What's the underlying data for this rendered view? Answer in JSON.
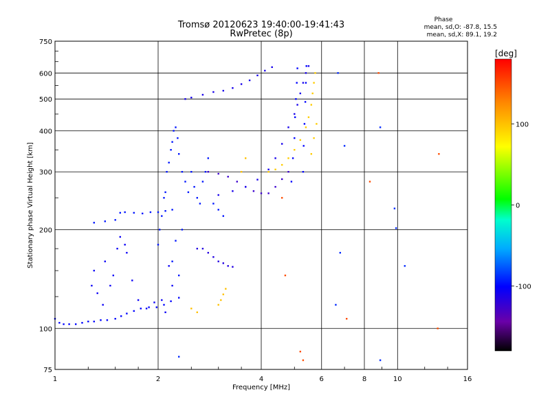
{
  "chart_data": {
    "type": "scatter",
    "title": "Tromsø 20120623 19:40:00-19:41:43",
    "subtitle": "RwPretec (8p)",
    "xlabel": "Frequency [MHz]",
    "ylabel": "Stationary phase Virtual Height [km]",
    "x_scale": "log",
    "y_scale": "log",
    "xlim": [
      1,
      16
    ],
    "ylim": [
      75,
      750
    ],
    "x_ticks": [
      1,
      2,
      4,
      6,
      8,
      10,
      16
    ],
    "y_ticks": [
      75,
      100,
      200,
      300,
      400,
      500,
      600,
      750
    ],
    "grid": true,
    "phase_info": {
      "heading": "Phase",
      "line_o": "mean, sd,O: -87.8, 15.5",
      "line_x": "mean, sd,X:  89.1, 19.2"
    },
    "colorbar": {
      "label": "[deg]",
      "range": [
        -180,
        180
      ],
      "ticks": [
        100,
        0,
        -100
      ],
      "colors": [
        "#000000",
        "#6a00a8",
        "#0000ff",
        "#00aaff",
        "#00ffcc",
        "#00ff00",
        "#ffff00",
        "#ff8800",
        "#ff0000"
      ]
    },
    "series": [
      {
        "phase": -100,
        "points": [
          [
            1.0,
            107
          ],
          [
            1.03,
            104
          ],
          [
            1.06,
            103
          ],
          [
            1.1,
            103
          ],
          [
            1.15,
            103
          ],
          [
            1.2,
            104
          ],
          [
            1.25,
            105
          ],
          [
            1.3,
            105
          ],
          [
            1.36,
            106
          ],
          [
            1.42,
            106
          ],
          [
            1.5,
            107
          ],
          [
            1.56,
            109
          ],
          [
            1.62,
            111
          ],
          [
            1.7,
            113
          ],
          [
            1.78,
            115
          ],
          [
            1.88,
            116
          ],
          [
            1.98,
            116
          ],
          [
            2.08,
            118
          ],
          [
            2.18,
            121
          ],
          [
            2.3,
            124
          ]
        ]
      },
      {
        "phase": -95,
        "points": [
          [
            1.3,
            210
          ],
          [
            1.4,
            212
          ],
          [
            1.5,
            214
          ],
          [
            1.55,
            225
          ],
          [
            1.6,
            226
          ],
          [
            1.7,
            225
          ],
          [
            1.8,
            224
          ],
          [
            1.9,
            226
          ],
          [
            2.0,
            226
          ],
          [
            2.1,
            228
          ],
          [
            2.2,
            230
          ]
        ]
      },
      {
        "phase": -105,
        "points": [
          [
            1.28,
            135
          ],
          [
            1.3,
            150
          ],
          [
            1.33,
            128
          ],
          [
            1.38,
            118
          ],
          [
            1.4,
            160
          ],
          [
            1.45,
            135
          ],
          [
            1.48,
            145
          ],
          [
            1.52,
            175
          ],
          [
            1.55,
            190
          ],
          [
            1.6,
            180
          ],
          [
            1.62,
            170
          ],
          [
            1.68,
            140
          ],
          [
            1.75,
            122
          ],
          [
            1.85,
            115
          ],
          [
            1.95,
            120
          ],
          [
            2.05,
            122
          ],
          [
            2.1,
            112
          ],
          [
            2.15,
            155
          ],
          [
            2.2,
            135
          ]
        ]
      },
      {
        "phase": -95,
        "points": [
          [
            2.0,
            180
          ],
          [
            2.02,
            200
          ],
          [
            2.05,
            220
          ],
          [
            2.08,
            250
          ],
          [
            2.1,
            260
          ],
          [
            2.12,
            300
          ],
          [
            2.15,
            320
          ],
          [
            2.18,
            350
          ],
          [
            2.2,
            370
          ],
          [
            2.22,
            400
          ],
          [
            2.25,
            410
          ],
          [
            2.28,
            380
          ],
          [
            2.3,
            340
          ],
          [
            2.35,
            300
          ],
          [
            2.4,
            280
          ],
          [
            2.45,
            260
          ],
          [
            2.5,
            300
          ],
          [
            2.55,
            270
          ],
          [
            2.6,
            250
          ],
          [
            2.65,
            240
          ],
          [
            2.7,
            280
          ],
          [
            2.75,
            300
          ],
          [
            2.8,
            330
          ],
          [
            2.9,
            240
          ],
          [
            3.0,
            230
          ],
          [
            3.1,
            220
          ],
          [
            2.2,
            160
          ],
          [
            2.25,
            185
          ],
          [
            2.3,
            145
          ],
          [
            2.35,
            200
          ]
        ]
      },
      {
        "phase": -115,
        "points": [
          [
            2.6,
            175
          ],
          [
            2.7,
            175
          ],
          [
            2.8,
            170
          ],
          [
            2.9,
            165
          ],
          [
            3.0,
            160
          ],
          [
            3.1,
            158
          ],
          [
            3.2,
            155
          ],
          [
            3.3,
            154
          ]
        ]
      },
      {
        "phase": -125,
        "points": [
          [
            2.8,
            300
          ],
          [
            3.0,
            296
          ],
          [
            3.2,
            290
          ],
          [
            3.4,
            280
          ],
          [
            3.6,
            270
          ],
          [
            3.8,
            262
          ],
          [
            4.0,
            258
          ],
          [
            4.2,
            258
          ],
          [
            4.4,
            270
          ],
          [
            4.6,
            285
          ],
          [
            4.8,
            300
          ]
        ]
      },
      {
        "phase": -110,
        "points": [
          [
            3.0,
            255
          ],
          [
            3.3,
            262
          ],
          [
            3.6,
            270
          ],
          [
            3.9,
            284
          ],
          [
            4.2,
            305
          ],
          [
            4.4,
            330
          ],
          [
            4.6,
            365
          ],
          [
            4.8,
            410
          ],
          [
            5.0,
            450
          ],
          [
            5.1,
            480
          ],
          [
            5.2,
            520
          ],
          [
            5.3,
            560
          ],
          [
            5.4,
            600
          ],
          [
            5.5,
            630
          ]
        ]
      },
      {
        "phase": -100,
        "points": [
          [
            4.9,
            280
          ],
          [
            4.95,
            330
          ],
          [
            5.0,
            380
          ],
          [
            5.02,
            440
          ],
          [
            5.05,
            500
          ],
          [
            5.08,
            560
          ],
          [
            5.1,
            620
          ],
          [
            5.3,
            300
          ],
          [
            5.32,
            360
          ],
          [
            5.35,
            420
          ],
          [
            5.38,
            490
          ],
          [
            5.4,
            560
          ],
          [
            5.42,
            630
          ]
        ]
      },
      {
        "phase": -110,
        "points": [
          [
            2.4,
            500
          ],
          [
            2.5,
            505
          ],
          [
            2.7,
            515
          ],
          [
            2.9,
            525
          ],
          [
            3.1,
            530
          ],
          [
            3.3,
            540
          ],
          [
            3.5,
            555
          ],
          [
            3.7,
            570
          ],
          [
            3.9,
            590
          ],
          [
            4.1,
            610
          ],
          [
            4.3,
            625
          ]
        ]
      },
      {
        "phase": 95,
        "points": [
          [
            4.2,
            300
          ],
          [
            4.4,
            305
          ],
          [
            4.6,
            315
          ],
          [
            4.8,
            330
          ],
          [
            5.0,
            350
          ],
          [
            5.2,
            375
          ],
          [
            5.4,
            410
          ],
          [
            5.5,
            440
          ],
          [
            5.6,
            480
          ],
          [
            5.65,
            520
          ],
          [
            5.7,
            560
          ],
          [
            5.75,
            600
          ],
          [
            5.6,
            340
          ],
          [
            5.7,
            380
          ],
          [
            5.8,
            420
          ]
        ]
      },
      {
        "phase": 100,
        "points": [
          [
            2.5,
            115
          ],
          [
            2.6,
            112
          ],
          [
            3.0,
            118
          ],
          [
            3.05,
            122
          ],
          [
            3.1,
            127
          ],
          [
            3.15,
            132
          ],
          [
            3.5,
            300
          ],
          [
            3.6,
            330
          ]
        ]
      },
      {
        "phase": 150,
        "points": [
          [
            5.2,
            85
          ],
          [
            5.3,
            80
          ],
          [
            8.8,
            600
          ],
          [
            13.2,
            340
          ],
          [
            13.1,
            100
          ],
          [
            7.1,
            107
          ],
          [
            8.3,
            280
          ],
          [
            4.6,
            250
          ],
          [
            4.7,
            145
          ]
        ]
      },
      {
        "phase": -90,
        "points": [
          [
            6.7,
            600
          ],
          [
            8.9,
            410
          ],
          [
            7.0,
            360
          ],
          [
            9.8,
            232
          ],
          [
            9.9,
            202
          ],
          [
            6.8,
            170
          ],
          [
            6.6,
            118
          ],
          [
            10.5,
            155
          ],
          [
            8.9,
            80
          ],
          [
            2.3,
            82
          ]
        ]
      }
    ]
  }
}
